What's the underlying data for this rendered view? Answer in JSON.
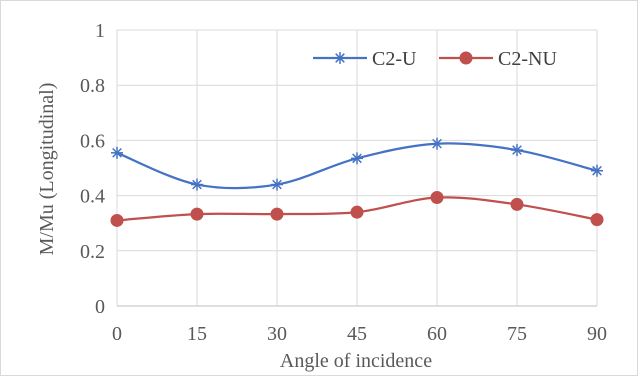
{
  "chart_data": {
    "type": "line",
    "xlabel": "Angle of incidence",
    "ylabel": "M/Mu (Longitudinal)",
    "x": [
      0,
      15,
      30,
      45,
      60,
      75,
      90
    ],
    "x_ticks": [
      "0",
      "15",
      "30",
      "45",
      "60",
      "75",
      "90"
    ],
    "ylim": [
      0,
      1
    ],
    "y_ticks": [
      "0",
      "0.2",
      "0.4",
      "0.6",
      "0.8",
      "1"
    ],
    "y_tick_values": [
      0,
      0.2,
      0.4,
      0.6,
      0.8,
      1
    ],
    "grid": true,
    "smooth": true,
    "legend": "top-right",
    "series": [
      {
        "name": "C2-U",
        "color": "#4472c4",
        "marker": "star",
        "values": [
          0.555,
          0.44,
          0.44,
          0.535,
          0.588,
          0.565,
          0.49
        ]
      },
      {
        "name": "C2-NU",
        "color": "#c0504d",
        "marker": "circle",
        "values": [
          0.31,
          0.333,
          0.333,
          0.34,
          0.393,
          0.368,
          0.313
        ]
      }
    ]
  }
}
